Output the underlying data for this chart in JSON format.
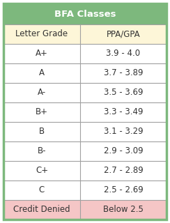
{
  "title": "BFA Classes",
  "col_headers": [
    "Letter Grade",
    "PPA/GPA"
  ],
  "rows": [
    [
      "A+",
      "3.9 - 4.0"
    ],
    [
      "A",
      "3.7 - 3.89"
    ],
    [
      "A-",
      "3.5 - 3.69"
    ],
    [
      "B+",
      "3.3 - 3.49"
    ],
    [
      "B",
      "3.1 - 3.29"
    ],
    [
      "B-",
      "2.9 - 3.09"
    ],
    [
      "C+",
      "2.7 - 2.89"
    ],
    [
      "C",
      "2.5 - 2.69"
    ],
    [
      "Credit Denied",
      "Below 2.5"
    ]
  ],
  "title_bg": "#7db87d",
  "header_bg": "#fdf6d8",
  "normal_bg": "#ffffff",
  "credit_denied_bg": "#f5c6c6",
  "border_color": "#a0a0a0",
  "title_text_color": "#ffffff",
  "header_text_color": "#333333",
  "normal_text_color": "#333333",
  "outer_border_color": "#7db87d",
  "col_split": 0.47,
  "figsize": [
    2.44,
    3.2
  ],
  "dpi": 100
}
